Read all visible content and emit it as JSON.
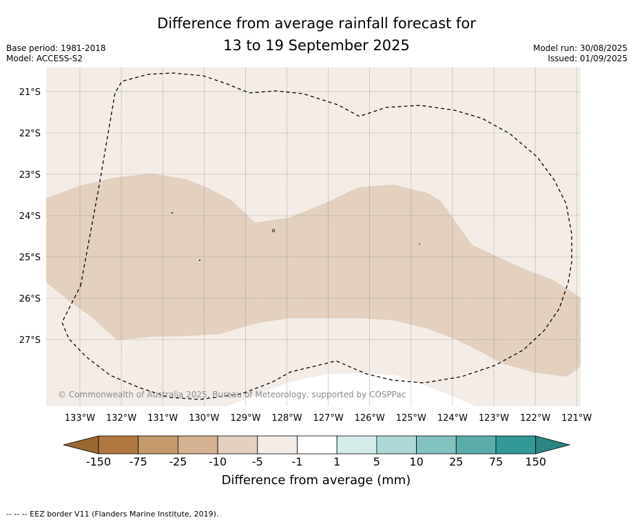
{
  "title": {
    "line1": "Difference from average rainfall forecast for",
    "line2": "13 to 19 September 2025"
  },
  "meta": {
    "base_period": "Base period: 1981-2018",
    "model": "Model: ACCESS-S2",
    "model_run": "Model run: 30/08/2025",
    "issued": "Issued: 01/09/2025"
  },
  "map": {
    "copyright": "© Commonwealth of Australia 2025, Bureau of Meteorology, supported by COSPPac",
    "lat_labels": [
      "21°S",
      "22°S",
      "23°S",
      "24°S",
      "25°S",
      "26°S",
      "27°S"
    ],
    "lon_labels": [
      "133°W",
      "132°W",
      "131°W",
      "130°W",
      "129°W",
      "128°W",
      "127°W",
      "126°W",
      "125°W",
      "124°W",
      "123°W",
      "122°W",
      "121°W"
    ]
  },
  "colorbar": {
    "label": "Difference from average (mm)",
    "ticks": [
      "-150",
      "-75",
      "-25",
      "-10",
      "-5",
      "-1",
      "1",
      "5",
      "10",
      "25",
      "75",
      "150"
    ],
    "colors": [
      "#b07840",
      "#c49a6c",
      "#d4b190",
      "#e3d0bf",
      "#f4ede7",
      "#ffffff",
      "#d4ecea",
      "#acd9d6",
      "#82c2bf",
      "#5aadaa",
      "#339997"
    ],
    "extend_low_color": "#9a6830",
    "extend_high_color": "#2a8583"
  },
  "footer": "--  --  -- EEZ border V11 (Flanders Marine Institute, 2019)."
}
